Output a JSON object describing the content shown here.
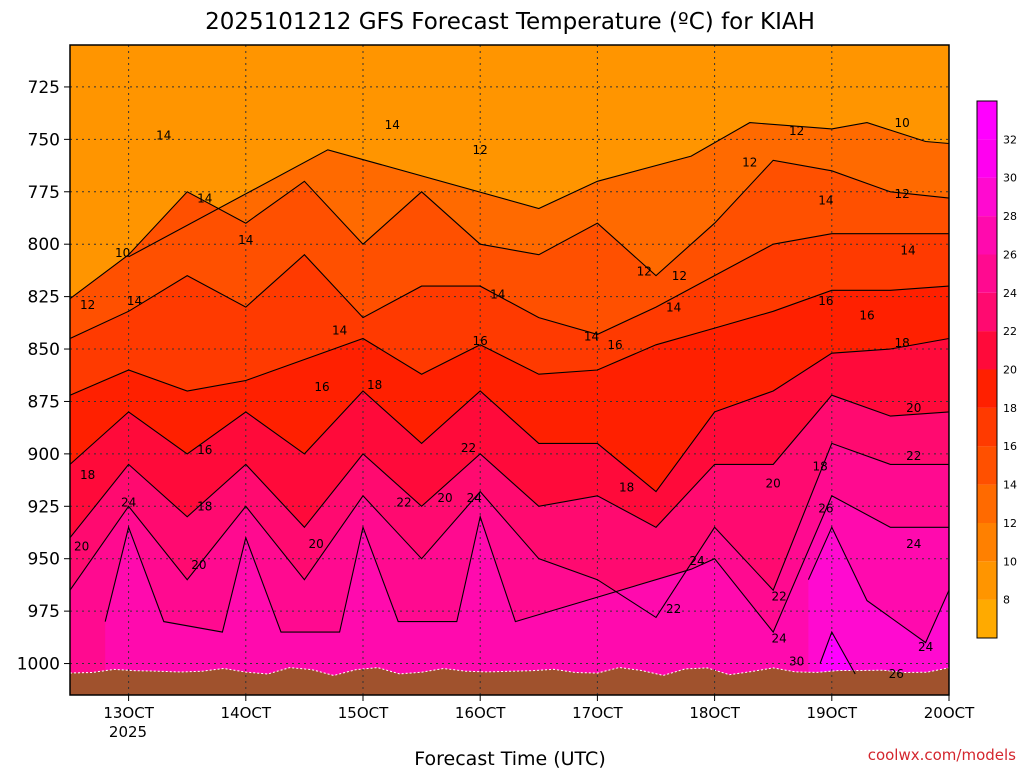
{
  "chart_data": {
    "type": "heatmap",
    "title": "2025101212 GFS Forecast Temperature (ºC) for KIAH",
    "xlabel": "Forecast Time (UTC)",
    "ylabel": "",
    "x_tick_labels": [
      "13OCT",
      "14OCT",
      "15OCT",
      "16OCT",
      "17OCT",
      "18OCT",
      "19OCT",
      "20OCT"
    ],
    "x_sub_label": "2025",
    "y_tick_labels": [
      "725",
      "750",
      "775",
      "800",
      "825",
      "850",
      "875",
      "900",
      "925",
      "950",
      "975",
      "1000"
    ],
    "y_range_hpa": [
      705,
      1015
    ],
    "x_range_days": [
      12.5,
      20.0
    ],
    "colorbar_levels": [
      8,
      10,
      12,
      14,
      16,
      18,
      20,
      22,
      24,
      26,
      28,
      30,
      32
    ],
    "colorbar_colors": [
      "#ffaa00",
      "#ff9500",
      "#ff8000",
      "#ff6a00",
      "#ff5000",
      "#ff3a00",
      "#ff2000",
      "#ff0a3a",
      "#ff0a70",
      "#ff0a90",
      "#ff0aae",
      "#ff0ad0",
      "#ff00f0",
      "#ff00ff"
    ],
    "series": [
      {
        "name": "isotherm_10C",
        "label": "10",
        "values": [
          {
            "x": 13.0,
            "p": 806
          },
          {
            "x": 14.7,
            "p": 755
          },
          {
            "x": 16.5,
            "p": 783
          },
          {
            "x": 17.0,
            "p": 770
          },
          {
            "x": 17.8,
            "p": 758
          },
          {
            "x": 18.3,
            "p": 742
          },
          {
            "x": 19.0,
            "p": 745
          },
          {
            "x": 19.3,
            "p": 742
          },
          {
            "x": 19.8,
            "p": 751
          },
          {
            "x": 20.0,
            "p": 752
          }
        ]
      },
      {
        "name": "isotherm_12C",
        "label": "12",
        "values": [
          {
            "x": 12.5,
            "p": 826
          },
          {
            "x": 13.0,
            "p": 805
          },
          {
            "x": 13.5,
            "p": 775
          },
          {
            "x": 14.0,
            "p": 790
          },
          {
            "x": 14.5,
            "p": 770
          },
          {
            "x": 15.0,
            "p": 800
          },
          {
            "x": 15.5,
            "p": 775
          },
          {
            "x": 16.0,
            "p": 800
          },
          {
            "x": 16.5,
            "p": 805
          },
          {
            "x": 17.0,
            "p": 790
          },
          {
            "x": 17.5,
            "p": 815
          },
          {
            "x": 18.0,
            "p": 790
          },
          {
            "x": 18.5,
            "p": 760
          },
          {
            "x": 19.0,
            "p": 765
          },
          {
            "x": 19.5,
            "p": 775
          },
          {
            "x": 20.0,
            "p": 778
          }
        ]
      },
      {
        "name": "isotherm_14C",
        "label": "14",
        "values": [
          {
            "x": 12.5,
            "p": 845
          },
          {
            "x": 13.0,
            "p": 832
          },
          {
            "x": 13.5,
            "p": 815
          },
          {
            "x": 14.0,
            "p": 830
          },
          {
            "x": 14.5,
            "p": 805
          },
          {
            "x": 15.0,
            "p": 835
          },
          {
            "x": 15.5,
            "p": 820
          },
          {
            "x": 16.0,
            "p": 820
          },
          {
            "x": 16.5,
            "p": 835
          },
          {
            "x": 17.0,
            "p": 843
          },
          {
            "x": 17.5,
            "p": 830
          },
          {
            "x": 18.0,
            "p": 815
          },
          {
            "x": 18.5,
            "p": 800
          },
          {
            "x": 19.0,
            "p": 795
          },
          {
            "x": 19.5,
            "p": 795
          },
          {
            "x": 20.0,
            "p": 795
          }
        ]
      },
      {
        "name": "isotherm_16C",
        "label": "16",
        "values": [
          {
            "x": 12.5,
            "p": 872
          },
          {
            "x": 13.0,
            "p": 860
          },
          {
            "x": 13.5,
            "p": 870
          },
          {
            "x": 14.0,
            "p": 865
          },
          {
            "x": 14.5,
            "p": 855
          },
          {
            "x": 15.0,
            "p": 845
          },
          {
            "x": 15.5,
            "p": 862
          },
          {
            "x": 16.0,
            "p": 848
          },
          {
            "x": 16.5,
            "p": 862
          },
          {
            "x": 17.0,
            "p": 860
          },
          {
            "x": 17.5,
            "p": 848
          },
          {
            "x": 18.0,
            "p": 840
          },
          {
            "x": 18.5,
            "p": 832
          },
          {
            "x": 19.0,
            "p": 822
          },
          {
            "x": 19.5,
            "p": 822
          },
          {
            "x": 20.0,
            "p": 820
          }
        ]
      },
      {
        "name": "isotherm_18C",
        "label": "18",
        "values": [
          {
            "x": 12.5,
            "p": 905
          },
          {
            "x": 13.0,
            "p": 880
          },
          {
            "x": 13.5,
            "p": 900
          },
          {
            "x": 14.0,
            "p": 880
          },
          {
            "x": 14.5,
            "p": 900
          },
          {
            "x": 15.0,
            "p": 870
          },
          {
            "x": 15.5,
            "p": 895
          },
          {
            "x": 16.0,
            "p": 870
          },
          {
            "x": 16.5,
            "p": 895
          },
          {
            "x": 17.0,
            "p": 895
          },
          {
            "x": 17.5,
            "p": 918
          },
          {
            "x": 18.0,
            "p": 880
          },
          {
            "x": 18.5,
            "p": 870
          },
          {
            "x": 19.0,
            "p": 852
          },
          {
            "x": 19.5,
            "p": 850
          },
          {
            "x": 20.0,
            "p": 845
          }
        ]
      },
      {
        "name": "isotherm_20C",
        "label": "20",
        "values": [
          {
            "x": 12.5,
            "p": 940
          },
          {
            "x": 13.0,
            "p": 905
          },
          {
            "x": 13.5,
            "p": 930
          },
          {
            "x": 14.0,
            "p": 905
          },
          {
            "x": 14.5,
            "p": 935
          },
          {
            "x": 15.0,
            "p": 900
          },
          {
            "x": 15.5,
            "p": 925
          },
          {
            "x": 16.0,
            "p": 900
          },
          {
            "x": 16.5,
            "p": 925
          },
          {
            "x": 17.0,
            "p": 920
          },
          {
            "x": 17.5,
            "p": 935
          },
          {
            "x": 18.0,
            "p": 905
          },
          {
            "x": 18.5,
            "p": 905
          },
          {
            "x": 19.0,
            "p": 872
          },
          {
            "x": 19.5,
            "p": 882
          },
          {
            "x": 20.0,
            "p": 880
          }
        ]
      },
      {
        "name": "isotherm_22C",
        "label": "22",
        "values": [
          {
            "x": 12.5,
            "p": 965
          },
          {
            "x": 13.0,
            "p": 925
          },
          {
            "x": 13.5,
            "p": 960
          },
          {
            "x": 14.0,
            "p": 925
          },
          {
            "x": 14.5,
            "p": 960
          },
          {
            "x": 15.0,
            "p": 920
          },
          {
            "x": 15.5,
            "p": 950
          },
          {
            "x": 16.0,
            "p": 918
          },
          {
            "x": 16.5,
            "p": 950
          },
          {
            "x": 17.0,
            "p": 960
          },
          {
            "x": 17.5,
            "p": 978
          },
          {
            "x": 18.0,
            "p": 935
          },
          {
            "x": 18.5,
            "p": 965
          },
          {
            "x": 19.0,
            "p": 895
          },
          {
            "x": 19.5,
            "p": 905
          },
          {
            "x": 20.0,
            "p": 905
          }
        ]
      },
      {
        "name": "isotherm_24C",
        "label": "24",
        "values": [
          {
            "x": 12.8,
            "p": 980
          },
          {
            "x": 13.0,
            "p": 935
          },
          {
            "x": 13.3,
            "p": 980
          },
          {
            "x": 13.8,
            "p": 985
          },
          {
            "x": 14.0,
            "p": 940
          },
          {
            "x": 14.3,
            "p": 985
          },
          {
            "x": 14.8,
            "p": 985
          },
          {
            "x": 15.0,
            "p": 935
          },
          {
            "x": 15.3,
            "p": 980
          },
          {
            "x": 15.8,
            "p": 980
          },
          {
            "x": 16.0,
            "p": 930
          },
          {
            "x": 16.3,
            "p": 980
          },
          {
            "x": 17.8,
            "p": 955
          },
          {
            "x": 18.0,
            "p": 950
          },
          {
            "x": 18.5,
            "p": 985
          },
          {
            "x": 19.0,
            "p": 920
          },
          {
            "x": 19.5,
            "p": 935
          },
          {
            "x": 20.0,
            "p": 935
          }
        ]
      },
      {
        "name": "isotherm_26C",
        "label": "26",
        "values": [
          {
            "x": 18.8,
            "p": 960
          },
          {
            "x": 19.0,
            "p": 935
          },
          {
            "x": 19.3,
            "p": 970
          },
          {
            "x": 19.8,
            "p": 990
          },
          {
            "x": 20.0,
            "p": 965
          }
        ]
      },
      {
        "name": "isotherm_30C",
        "label": "30",
        "values": [
          {
            "x": 18.9,
            "p": 1000
          },
          {
            "x": 19.0,
            "p": 985
          },
          {
            "x": 19.2,
            "p": 1005
          }
        ]
      }
    ],
    "annotations": [
      {
        "text": "10",
        "x": 12.95,
        "p": 806
      },
      {
        "text": "14",
        "x": 13.3,
        "p": 750
      },
      {
        "text": "14",
        "x": 13.65,
        "p": 780
      },
      {
        "text": "14",
        "x": 14.0,
        "p": 800
      },
      {
        "text": "14",
        "x": 16.15,
        "p": 826
      },
      {
        "text": "14",
        "x": 15.25,
        "p": 745
      },
      {
        "text": "12",
        "x": 12.65,
        "p": 831
      },
      {
        "text": "14",
        "x": 13.05,
        "p": 829
      },
      {
        "text": "14",
        "x": 14.8,
        "p": 843
      },
      {
        "text": "12",
        "x": 16.0,
        "p": 757
      },
      {
        "text": "12",
        "x": 17.4,
        "p": 815
      },
      {
        "text": "12",
        "x": 17.7,
        "p": 817
      },
      {
        "text": "12",
        "x": 18.7,
        "p": 748
      },
      {
        "text": "12",
        "x": 18.3,
        "p": 763
      },
      {
        "text": "10",
        "x": 19.6,
        "p": 744
      },
      {
        "text": "12",
        "x": 19.6,
        "p": 778
      },
      {
        "text": "14",
        "x": 18.95,
        "p": 781
      },
      {
        "text": "14",
        "x": 19.65,
        "p": 805
      },
      {
        "text": "14",
        "x": 17.65,
        "p": 832
      },
      {
        "text": "14",
        "x": 16.95,
        "p": 846
      },
      {
        "text": "16",
        "x": 17.15,
        "p": 850
      },
      {
        "text": "16",
        "x": 19.3,
        "p": 836
      },
      {
        "text": "16",
        "x": 18.95,
        "p": 829
      },
      {
        "text": "16",
        "x": 16.0,
        "p": 848
      },
      {
        "text": "16",
        "x": 14.65,
        "p": 870
      },
      {
        "text": "16",
        "x": 13.65,
        "p": 900
      },
      {
        "text": "18",
        "x": 15.1,
        "p": 869
      },
      {
        "text": "18",
        "x": 19.6,
        "p": 849
      },
      {
        "text": "18",
        "x": 18.9,
        "p": 908
      },
      {
        "text": "18",
        "x": 17.25,
        "p": 918
      },
      {
        "text": "18",
        "x": 12.65,
        "p": 912
      },
      {
        "text": "18",
        "x": 13.65,
        "p": 927
      },
      {
        "text": "20",
        "x": 12.6,
        "p": 946
      },
      {
        "text": "20",
        "x": 13.6,
        "p": 955
      },
      {
        "text": "20",
        "x": 14.6,
        "p": 945
      },
      {
        "text": "20",
        "x": 15.7,
        "p": 923
      },
      {
        "text": "20",
        "x": 19.7,
        "p": 880
      },
      {
        "text": "20",
        "x": 18.5,
        "p": 916
      },
      {
        "text": "22",
        "x": 15.35,
        "p": 925
      },
      {
        "text": "22",
        "x": 15.9,
        "p": 899
      },
      {
        "text": "22",
        "x": 19.7,
        "p": 903
      },
      {
        "text": "22",
        "x": 17.65,
        "p": 976
      },
      {
        "text": "22",
        "x": 18.55,
        "p": 970
      },
      {
        "text": "24",
        "x": 13.0,
        "p": 925
      },
      {
        "text": "24",
        "x": 15.95,
        "p": 923
      },
      {
        "text": "24",
        "x": 17.85,
        "p": 953
      },
      {
        "text": "24",
        "x": 18.55,
        "p": 990
      },
      {
        "text": "24",
        "x": 19.7,
        "p": 945
      },
      {
        "text": "24",
        "x": 19.8,
        "p": 994
      },
      {
        "text": "26",
        "x": 18.95,
        "p": 928
      },
      {
        "text": "26",
        "x": 19.55,
        "p": 1007
      },
      {
        "text": "30",
        "x": 18.7,
        "p": 1001
      }
    ]
  },
  "footer": {
    "credit": "coolwx.com/models"
  },
  "colors": {
    "ground": "#a0522d",
    "frame": "#000000",
    "grid": "#333333"
  }
}
